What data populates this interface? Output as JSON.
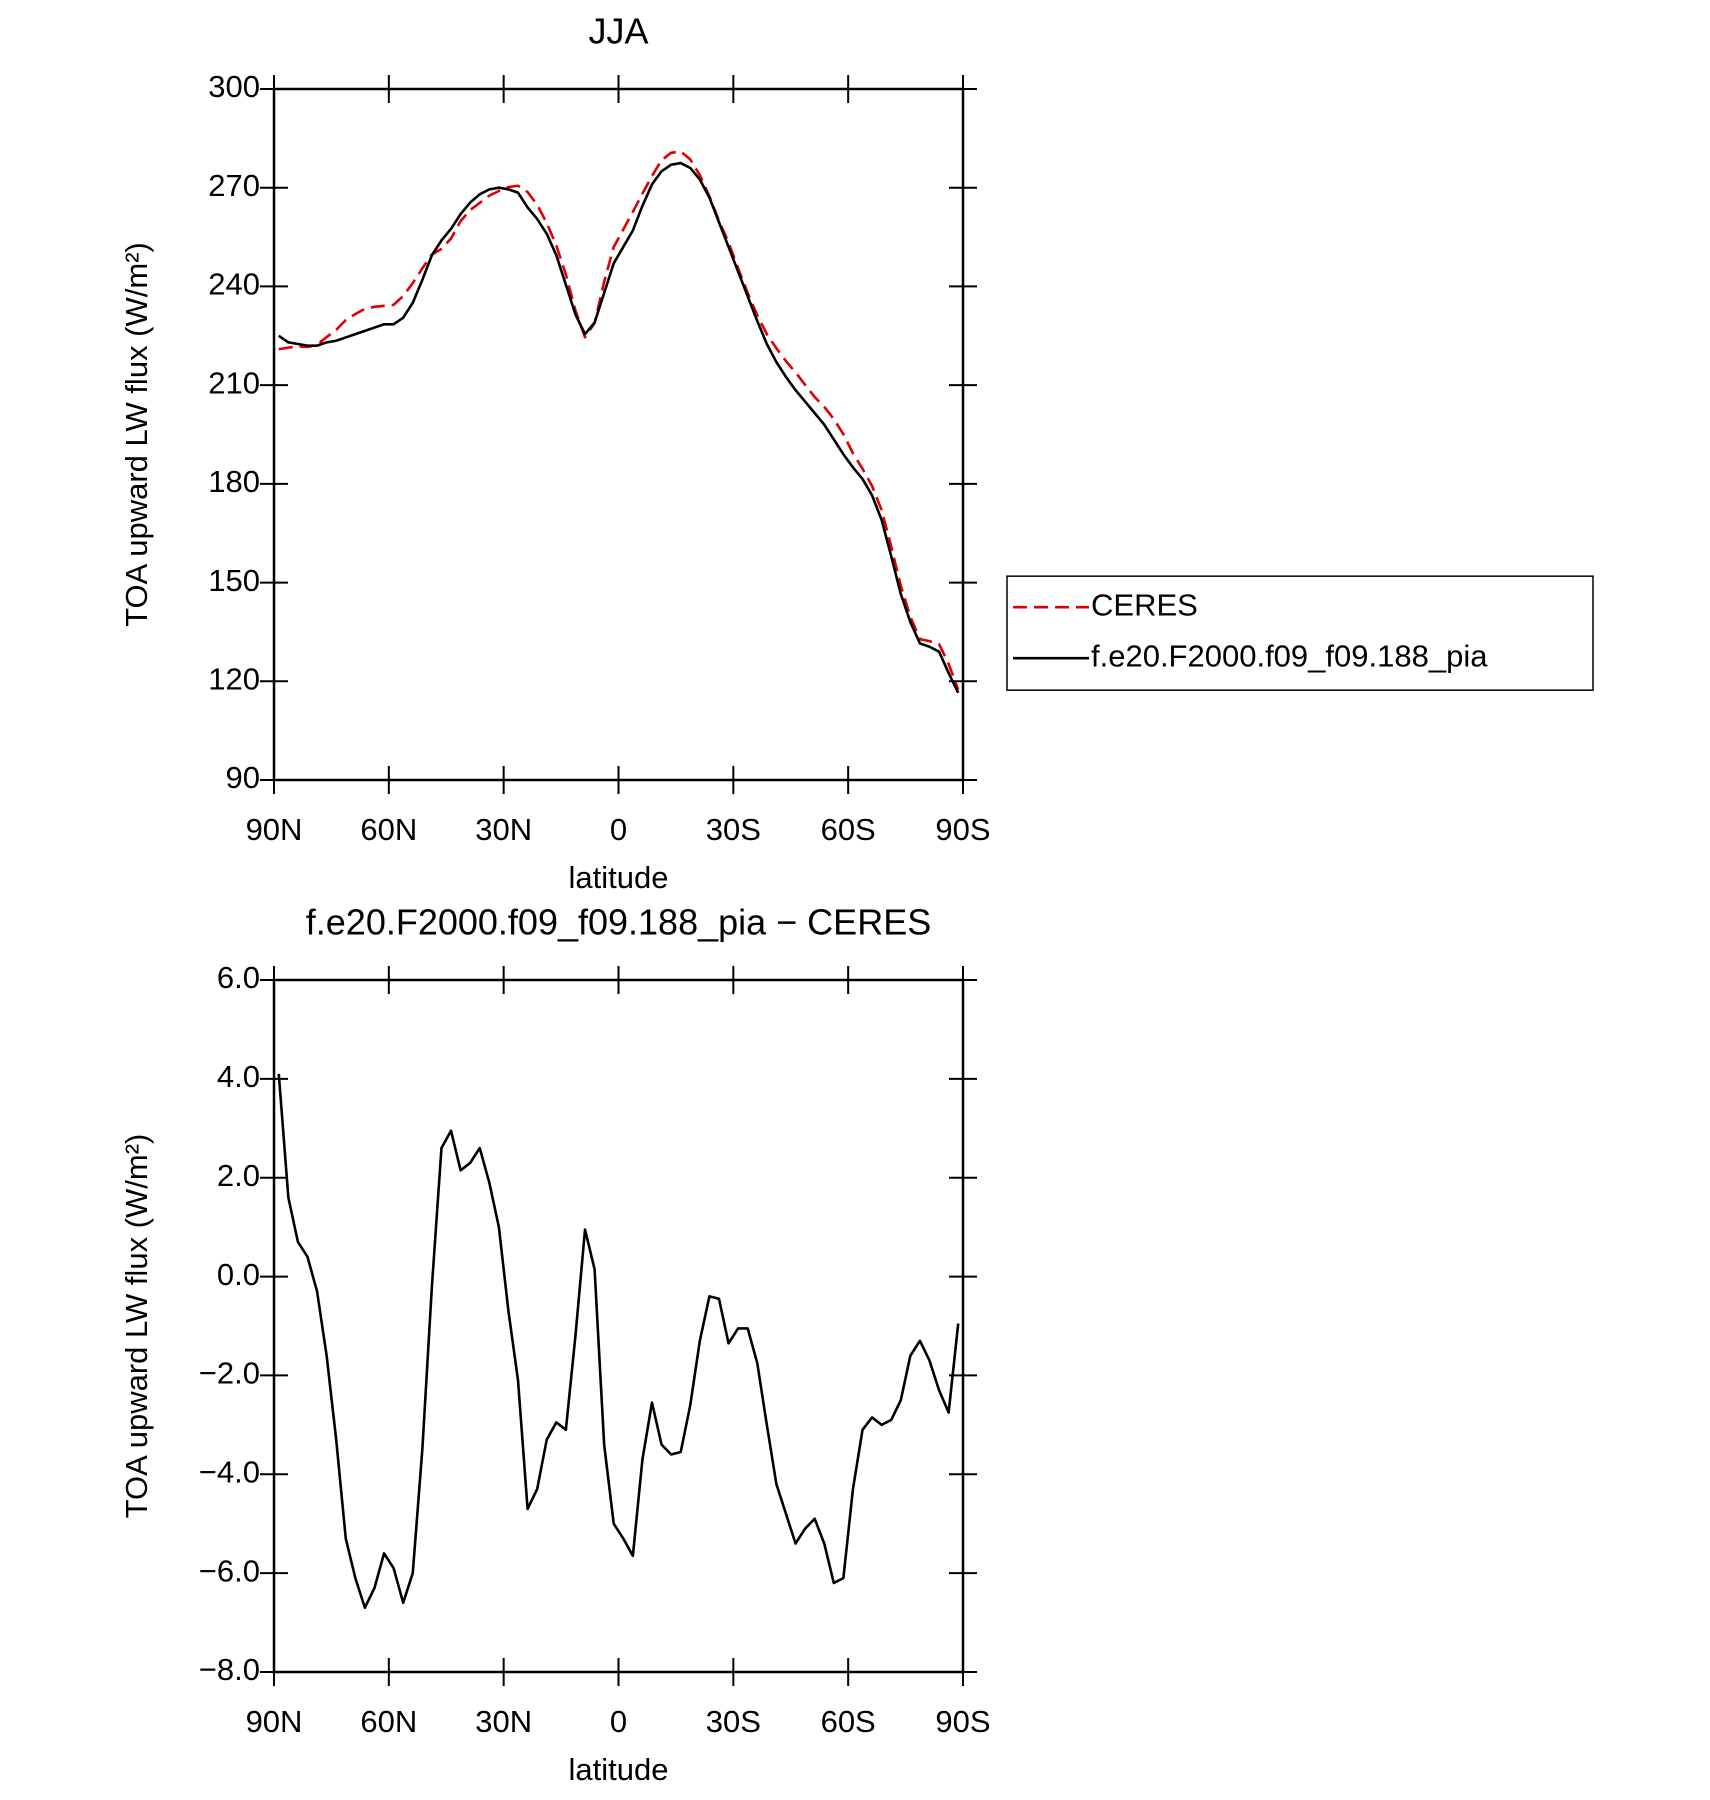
{
  "chart_data": [
    {
      "type": "line",
      "title": "JJA",
      "xlabel": "latitude",
      "ylabel": "TOA upward LW flux (W/m²)",
      "x": [
        88.75,
        86.25,
        83.75,
        81.25,
        78.75,
        76.25,
        73.75,
        71.25,
        68.75,
        66.25,
        63.75,
        61.25,
        58.75,
        56.25,
        53.75,
        51.25,
        48.75,
        46.25,
        43.75,
        41.25,
        38.75,
        36.25,
        33.75,
        31.25,
        28.75,
        26.25,
        23.75,
        21.25,
        18.75,
        16.25,
        13.75,
        11.25,
        8.75,
        6.25,
        3.75,
        1.25,
        -1.25,
        -3.75,
        -6.25,
        -8.75,
        -11.25,
        -13.75,
        -16.25,
        -18.75,
        -21.25,
        -23.75,
        -26.25,
        -28.75,
        -31.25,
        -33.75,
        -36.25,
        -38.75,
        -41.25,
        -43.75,
        -46.25,
        -48.75,
        -51.25,
        -53.75,
        -56.25,
        -58.75,
        -61.25,
        -63.75,
        -66.25,
        -68.75,
        -71.25,
        -73.75,
        -76.25,
        -78.75,
        -81.25,
        -83.75,
        -86.25,
        -88.75
      ],
      "series": [
        {
          "name": "CERES",
          "color": "#e00000",
          "line_style": "dashed",
          "values": [
            220.9,
            221.4,
            221.8,
            221.6,
            222.3,
            224.6,
            226.8,
            229.8,
            231.6,
            233.2,
            233.8,
            234.1,
            234.4,
            237.1,
            241,
            245.5,
            249.7,
            251.4,
            254.55,
            259.85,
            263.2,
            265.4,
            267.6,
            269,
            270.2,
            270.6,
            268.7,
            264.8,
            259.3,
            252.45,
            243.6,
            232.7,
            224.55,
            228.85,
            241.4,
            252,
            257.3,
            262.65,
            268.2,
            273.55,
            278.4,
            280.6,
            281.05,
            278.6,
            273.8,
            267.4,
            259.95,
            253.35,
            245.55,
            238.05,
            231.25,
            225.5,
            221.2,
            217.3,
            213.9,
            210.1,
            206.4,
            203.4,
            199.7,
            195.1,
            189.3,
            184.6,
            179.35,
            172,
            160.9,
            149,
            139.6,
            132.8,
            132.2,
            131.3,
            125.25,
            117.45
          ]
        },
        {
          "name": "f.e20.F2000.f09_f09.188_pia",
          "color": "#000000",
          "line_style": "solid",
          "values": [
            225,
            223,
            222.5,
            222,
            222,
            223,
            223.5,
            224.5,
            225.5,
            226.5,
            227.5,
            228.5,
            228.5,
            230.5,
            235,
            242,
            249.5,
            254,
            257.5,
            262,
            265.5,
            268,
            269.5,
            270,
            269.5,
            268.5,
            264,
            260.5,
            256,
            249.5,
            240.5,
            231.5,
            225.5,
            229,
            238,
            247,
            252,
            257,
            264.5,
            271,
            275,
            277,
            277.5,
            276,
            272.5,
            267,
            259.5,
            252,
            244.5,
            237,
            229.5,
            222.5,
            217,
            212.5,
            208.5,
            205,
            201.5,
            198,
            193.5,
            189,
            185,
            181.5,
            176.5,
            169,
            158,
            146.5,
            138,
            131.5,
            130.5,
            129,
            122.5,
            116.5
          ]
        }
      ],
      "xlim": [
        90,
        -90
      ],
      "xticks": [
        {
          "value": 90,
          "label": "90N"
        },
        {
          "value": 60,
          "label": "60N"
        },
        {
          "value": 30,
          "label": "30N"
        },
        0,
        {
          "value": -30,
          "label": "30S"
        },
        {
          "value": -60,
          "label": "60S"
        },
        {
          "value": -90,
          "label": "90S"
        }
      ],
      "ylim": [
        90,
        300
      ],
      "yticks": [
        90,
        120,
        150,
        180,
        210,
        240,
        270,
        300
      ],
      "legend": "right"
    },
    {
      "type": "line",
      "title": "f.e20.F2000.f09_f09.188_pia − CERES",
      "xlabel": "latitude",
      "ylabel": "TOA upward LW flux (W/m²)",
      "x": [
        88.75,
        86.25,
        83.75,
        81.25,
        78.75,
        76.25,
        73.75,
        71.25,
        68.75,
        66.25,
        63.75,
        61.25,
        58.75,
        56.25,
        53.75,
        51.25,
        48.75,
        46.25,
        43.75,
        41.25,
        38.75,
        36.25,
        33.75,
        31.25,
        28.75,
        26.25,
        23.75,
        21.25,
        18.75,
        16.25,
        13.75,
        11.25,
        8.75,
        6.25,
        3.75,
        1.25,
        -1.25,
        -3.75,
        -6.25,
        -8.75,
        -11.25,
        -13.75,
        -16.25,
        -18.75,
        -21.25,
        -23.75,
        -26.25,
        -28.75,
        -31.25,
        -33.75,
        -36.25,
        -38.75,
        -41.25,
        -43.75,
        -46.25,
        -48.75,
        -51.25,
        -53.75,
        -56.25,
        -58.75,
        -61.25,
        -63.75,
        -66.25,
        -68.75,
        -71.25,
        -73.75,
        -76.25,
        -78.75,
        -81.25,
        -83.75,
        -86.25,
        -88.75
      ],
      "series": [
        {
          "color": "#000000",
          "line_style": "solid",
          "values": [
            4.1,
            1.6,
            0.7,
            0.4,
            -0.3,
            -1.6,
            -3.3,
            -5.3,
            -6.1,
            -6.7,
            -6.3,
            -5.6,
            -5.9,
            -6.6,
            -6.0,
            -3.5,
            -0.2,
            2.6,
            2.95,
            2.15,
            2.3,
            2.6,
            1.9,
            1.0,
            -0.7,
            -2.1,
            -4.7,
            -4.3,
            -3.3,
            -2.95,
            -3.1,
            -1.2,
            0.95,
            0.15,
            -3.4,
            -5.0,
            -5.3,
            -5.65,
            -3.7,
            -2.55,
            -3.4,
            -3.6,
            -3.55,
            -2.6,
            -1.3,
            -0.4,
            -0.45,
            -1.35,
            -1.05,
            -1.05,
            -1.75,
            -3.0,
            -4.2,
            -4.8,
            -5.4,
            -5.1,
            -4.9,
            -5.4,
            -6.2,
            -6.1,
            -4.3,
            -3.1,
            -2.85,
            -3.0,
            -2.9,
            -2.5,
            -1.6,
            -1.3,
            -1.7,
            -2.3,
            -2.75,
            -0.95
          ]
        }
      ],
      "xlim": [
        90,
        -90
      ],
      "xticks": [
        {
          "value": 90,
          "label": "90N"
        },
        {
          "value": 60,
          "label": "60N"
        },
        {
          "value": 30,
          "label": "30N"
        },
        0,
        {
          "value": -30,
          "label": "30S"
        },
        {
          "value": -60,
          "label": "60S"
        },
        {
          "value": -90,
          "label": "90S"
        }
      ],
      "ylim": [
        -8,
        6
      ],
      "yticks": [
        {
          "value": -8,
          "label": "−8.0"
        },
        {
          "value": -6,
          "label": "−6.0"
        },
        {
          "value": -4,
          "label": "−4.0"
        },
        {
          "value": -2,
          "label": "−2.0"
        },
        {
          "value": 0,
          "label": "0.0"
        },
        {
          "value": 2,
          "label": "2.0"
        },
        {
          "value": 4,
          "label": "4.0"
        },
        {
          "value": 6,
          "label": "6.0"
        }
      ]
    }
  ]
}
